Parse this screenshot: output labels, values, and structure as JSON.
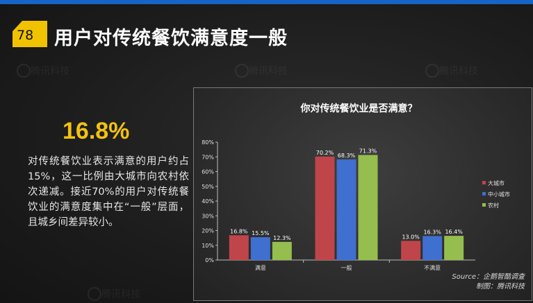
{
  "header": {
    "page_number": "78",
    "title": "用户对传统餐饮满意度一般"
  },
  "summary": {
    "highlight": "16.8%",
    "description": "对传统餐饮业表示满意的用户约占15%，这一比例由大城市向农村依次递减。接近70%的用户对传统餐饮业的满意度集中在“一般”层面，且城乡间差异较小。"
  },
  "watermark": {
    "text": "腾讯科技"
  },
  "chart_data": {
    "type": "bar",
    "title": "你对传统餐饮业是否满意？",
    "categories": [
      "满意",
      "一般",
      "不满意"
    ],
    "series": [
      {
        "name": "大城市",
        "color": "#c0454a",
        "values": [
          16.8,
          70.2,
          13.0
        ],
        "labels": [
          "16.8%",
          "70.2%",
          "13.0%"
        ]
      },
      {
        "name": "中小城市",
        "color": "#3f6fcf",
        "values": [
          15.5,
          68.3,
          16.3
        ],
        "labels": [
          "15.5%",
          "68.3%",
          "16.3%"
        ]
      },
      {
        "name": "农村",
        "color": "#95be4e",
        "values": [
          12.3,
          71.3,
          16.4
        ],
        "labels": [
          "12.3%",
          "71.3%",
          "16.4%"
        ]
      }
    ],
    "ylim": [
      0,
      80
    ],
    "yticks": [
      "0%",
      "10%",
      "20%",
      "30%",
      "40%",
      "50%",
      "60%",
      "70%",
      "80%"
    ],
    "grid": false,
    "legend_position": "right"
  },
  "source": {
    "line1": "Source：企鹅智酷调查",
    "line2": "制图：腾讯科技"
  }
}
